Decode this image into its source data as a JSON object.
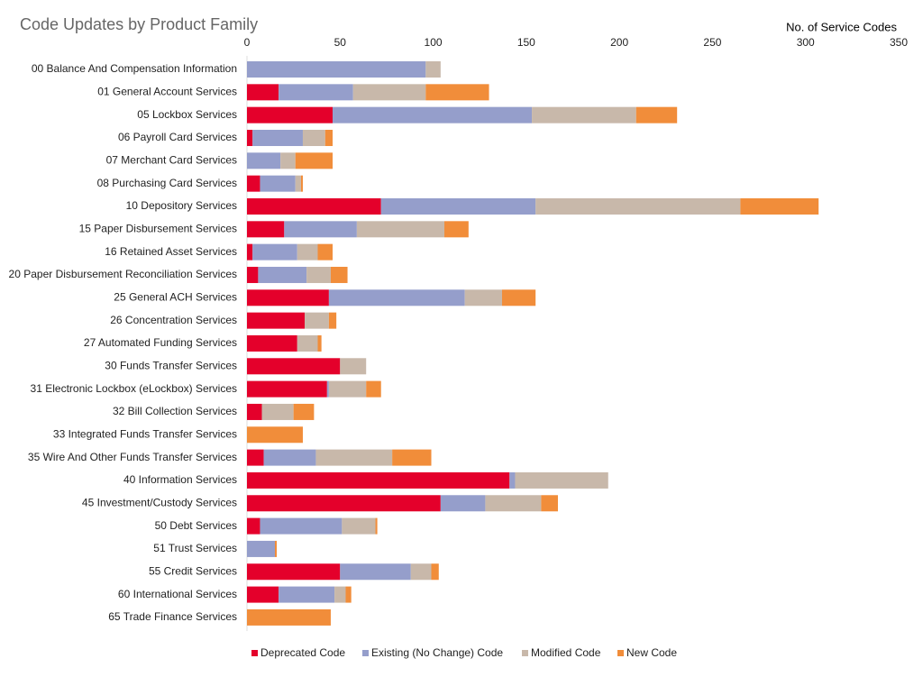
{
  "chart_data": {
    "type": "stacked-barh",
    "title": "Code Updates by Product Family",
    "xlabel": "No. of Service Codes",
    "categories": [
      "00 Balance And Compensation Information",
      "01 General Account Services",
      "05 Lockbox Services",
      "06 Payroll Card Services",
      "07 Merchant Card Services",
      "08 Purchasing Card Services",
      "10 Depository Services",
      "15 Paper Disbursement Services",
      "16 Retained Asset Services",
      "20 Paper Disbursement Reconciliation Services",
      "25 General ACH Services",
      "26 Concentration Services",
      "27 Automated Funding Services",
      "30 Funds Transfer Services",
      "31 Electronic Lockbox (eLockbox) Services",
      "32 Bill Collection Services",
      "33 Integrated Funds Transfer Services",
      "35 Wire And Other Funds Transfer Services",
      "40 Information Services",
      "45 Investment/Custody Services",
      "50 Debt Services",
      "51 Trust Services",
      "55 Credit Services",
      "60 International Services",
      "65 Trade Finance Services"
    ],
    "series": [
      {
        "name": "Deprecated Code",
        "color": "#e4002b",
        "values": [
          0,
          17,
          46,
          3,
          0,
          7,
          72,
          20,
          3,
          6,
          44,
          31,
          27,
          50,
          43,
          8,
          0,
          9,
          141,
          104,
          7,
          0,
          50,
          17,
          0
        ]
      },
      {
        "name": "Existing (No Change) Code",
        "color": "#959ecb",
        "values": [
          96,
          40,
          107,
          27,
          18,
          19,
          83,
          39,
          24,
          26,
          73,
          0,
          0,
          0,
          1,
          0,
          0,
          28,
          3,
          24,
          44,
          15,
          38,
          30,
          0
        ]
      },
      {
        "name": "Modified Code",
        "color": "#c8b8aa",
        "values": [
          8,
          39,
          56,
          12,
          8,
          3,
          110,
          47,
          11,
          13,
          20,
          13,
          11,
          14,
          20,
          17,
          0,
          41,
          50,
          30,
          18,
          0,
          11,
          6,
          0
        ]
      },
      {
        "name": "New Code",
        "color": "#f18d3a",
        "values": [
          0,
          34,
          22,
          4,
          20,
          1,
          42,
          13,
          8,
          9,
          18,
          4,
          2,
          0,
          8,
          11,
          30,
          21,
          0,
          9,
          1,
          1,
          4,
          3,
          45
        ]
      }
    ],
    "xlim": [
      0,
      350
    ],
    "xticks": [
      0,
      50,
      100,
      150,
      200,
      250,
      300,
      350
    ],
    "grid": false
  }
}
